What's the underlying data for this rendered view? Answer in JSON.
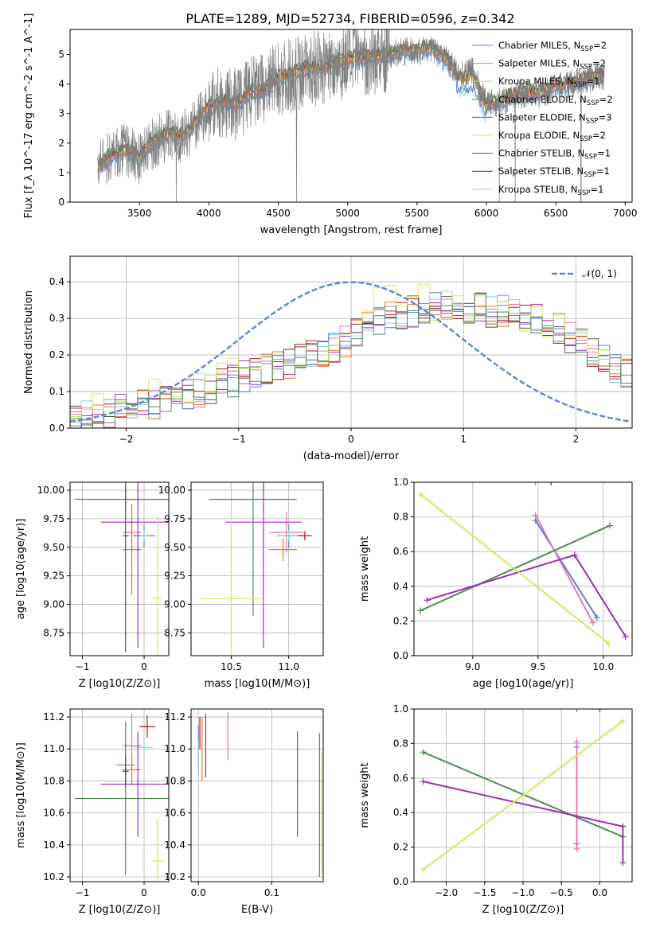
{
  "figure_title": "PLATE=1289, MJD=52734, FIBERID=0596, z=0.342",
  "colors": {
    "chabrier_miles": "#5b7fd0",
    "salpeter_miles": "#e07ab0",
    "kroupa_miles": "#d3d94a",
    "chabrier_elodie": "#4f8a56",
    "salpeter_elodie": "#9b2fb0",
    "kroupa_elodie": "#cfe85a",
    "chabrier_stelib": "#555555",
    "salpeter_stelib": "#b3131b",
    "kroupa_stelib": "#8fd0d8",
    "orange": "#e8742a",
    "data": "#7f7f7f",
    "normal": "#5b86d6"
  },
  "chart_data": [
    {
      "type": "line",
      "panel": "spectrum",
      "title": "PLATE=1289, MJD=52734, FIBERID=0596, z=0.342",
      "xlabel": "wavelength [Angstrom, rest frame]",
      "ylabel": "Flux [f_λ 10^-17 erg cm^-2 s^-1 A^-1]",
      "xlim": [
        3000,
        7050
      ],
      "ylim": [
        0,
        5.85
      ],
      "xticks": [
        "3500",
        "4000",
        "4500",
        "5000",
        "5500",
        "6000",
        "6500",
        "7000"
      ],
      "yticks": [
        "0",
        "1",
        "2",
        "3",
        "4",
        "5"
      ],
      "legend": [
        {
          "label": "Chabrier MILES, N_SSP=2",
          "color": "chabrier_miles"
        },
        {
          "label": "Salpeter MILES, N_SSP=2",
          "color": "salpeter_miles"
        },
        {
          "label": "Kroupa MILES, N_SSP=1",
          "color": "kroupa_miles"
        },
        {
          "label": "Chabrier ELODIE, N_SSP=2",
          "color": "chabrier_elodie"
        },
        {
          "label": "Salpeter ELODIE, N_SSP=3",
          "color": "salpeter_elodie"
        },
        {
          "label": "Kroupa ELODIE, N_SSP=2",
          "color": "kroupa_elodie"
        },
        {
          "label": "Chabrier STELIB, N_SSP=1",
          "color": "chabrier_stelib"
        },
        {
          "label": "Salpeter STELIB, N_SSP=1",
          "color": "salpeter_stelib"
        },
        {
          "label": "Kroupa STELIB, N_SSP=1",
          "color": "kroupa_stelib"
        }
      ],
      "legend_position": "top-right",
      "data_envelope": {
        "x": [
          3200,
          3300,
          3400,
          3500,
          3600,
          3700,
          3800,
          3900,
          4000,
          4100,
          4200,
          4300,
          4400,
          4500,
          4600,
          4700,
          4800,
          4900,
          5000,
          5100,
          5200,
          5300,
          5400,
          5500,
          5600,
          5700,
          5800,
          5900,
          6000,
          6100,
          6200,
          6300,
          6400,
          6500,
          6600,
          6700,
          6850
        ],
        "y": [
          1.15,
          1.6,
          1.75,
          1.5,
          2.0,
          2.3,
          2.2,
          2.6,
          3.2,
          3.4,
          3.3,
          3.7,
          3.8,
          4.2,
          4.3,
          4.5,
          4.5,
          4.7,
          4.8,
          4.9,
          4.9,
          5.0,
          5.1,
          5.1,
          5.2,
          4.9,
          4.3,
          4.4,
          3.3,
          3.4,
          3.6,
          3.7,
          3.7,
          3.9,
          4.0,
          4.1,
          4.3
        ]
      }
    },
    {
      "type": "line",
      "panel": "residuals",
      "xlabel": "(data-model)/error",
      "ylabel": "Normed distribution",
      "xlim": [
        -2.5,
        2.5
      ],
      "ylim": [
        0,
        0.47
      ],
      "xticks": [
        "−2",
        "−1",
        "0",
        "1",
        "2"
      ],
      "yticks": [
        "0.0",
        "0.1",
        "0.2",
        "0.3",
        "0.4"
      ],
      "legend": [
        {
          "label": "𝒩(0, 1)",
          "color": "normal",
          "style": "dashed"
        }
      ],
      "legend_position": "top-right",
      "hist_bins": {
        "start": -2.5,
        "width": 0.1
      },
      "hist_envelope": [
        0.02,
        0.03,
        0.03,
        0.04,
        0.05,
        0.06,
        0.06,
        0.07,
        0.08,
        0.09,
        0.09,
        0.1,
        0.11,
        0.12,
        0.13,
        0.14,
        0.15,
        0.16,
        0.17,
        0.18,
        0.19,
        0.2,
        0.21,
        0.22,
        0.24,
        0.26,
        0.28,
        0.29,
        0.3,
        0.31,
        0.32,
        0.32,
        0.33,
        0.33,
        0.33,
        0.33,
        0.33,
        0.32,
        0.32,
        0.32,
        0.31,
        0.3,
        0.29,
        0.27,
        0.25,
        0.23,
        0.21,
        0.19,
        0.17,
        0.15
      ]
    },
    {
      "type": "scatter",
      "panel": "age_vs_Z",
      "xlabel": "Z [log10(Z/Z⊙)]",
      "ylabel": "age [log10(age/yr)]",
      "xlim": [
        -1.2,
        0.4
      ],
      "ylim": [
        8.55,
        10.07
      ],
      "xticks": [
        "−1",
        "0"
      ],
      "yticks": [
        "8.75",
        "9.00",
        "9.25",
        "9.50",
        "9.75",
        "10.00"
      ],
      "points": [
        {
          "x": 0.0,
          "y": 9.6,
          "xerr": 0.18,
          "yerr": 0.1,
          "color": "chabrier_miles"
        },
        {
          "x": -0.2,
          "y": 9.63,
          "xerr": 0.15,
          "yerr": 0.18,
          "color": "salpeter_miles"
        },
        {
          "x": -0.2,
          "y": 9.48,
          "xerr": 0.15,
          "yerr": 0.4,
          "color": "orange"
        },
        {
          "x": -0.3,
          "y": 9.92,
          "xerr": 0.82,
          "yerr": 0.1,
          "color": "chabrier_elodie"
        },
        {
          "x": -0.1,
          "y": 9.72,
          "xerr": 0.6,
          "yerr": 1.1,
          "color": "salpeter_elodie"
        },
        {
          "x": 0.22,
          "y": 9.05,
          "xerr": 0.08,
          "yerr": 0.72,
          "color": "kroupa_elodie"
        },
        {
          "x": -0.3,
          "y": 9.6,
          "xerr": 0.05,
          "yerr": 1.02,
          "color": "chabrier_stelib"
        },
        {
          "x": 0.0,
          "y": 9.6,
          "xerr": 0.05,
          "yerr": 0.05,
          "color": "kroupa_stelib"
        }
      ]
    },
    {
      "type": "scatter",
      "panel": "age_vs_mass",
      "xlabel": "mass [log10(M/M⊙)]",
      "ylabel": "",
      "xlim": [
        10.15,
        11.3
      ],
      "ylim": [
        8.55,
        10.07
      ],
      "xticks": [
        "10.5",
        "11.0"
      ],
      "yticks": [
        "8.75",
        "9.00",
        "9.25",
        "9.50",
        "9.75",
        "10.00"
      ],
      "points": [
        {
          "x": 11.0,
          "y": 9.6,
          "xerr": 0.1,
          "yerr": 0.1,
          "color": "chabrier_miles"
        },
        {
          "x": 10.98,
          "y": 9.63,
          "xerr": 0.15,
          "yerr": 0.18,
          "color": "salpeter_miles"
        },
        {
          "x": 10.95,
          "y": 9.48,
          "xerr": 0.12,
          "yerr": 0.1,
          "color": "orange"
        },
        {
          "x": 10.69,
          "y": 9.92,
          "xerr": 0.38,
          "yerr": 1.02,
          "color": "chabrier_elodie"
        },
        {
          "x": 10.78,
          "y": 9.72,
          "xerr": 0.33,
          "yerr": 1.1,
          "color": "salpeter_elodie"
        },
        {
          "x": 10.5,
          "y": 9.05,
          "xerr": 0.27,
          "yerr": 0.72,
          "color": "kroupa_elodie"
        },
        {
          "x": 11.14,
          "y": 9.6,
          "xerr": 0.06,
          "yerr": 0.04,
          "color": "salpeter_stelib"
        },
        {
          "x": 11.0,
          "y": 9.6,
          "xerr": 0.08,
          "yerr": 0.05,
          "color": "kroupa_stelib"
        }
      ]
    },
    {
      "type": "line",
      "panel": "weight_vs_age",
      "xlabel": "age [log10(age/yr)]",
      "ylabel": "mass weight",
      "xlim": [
        8.55,
        10.22
      ],
      "ylim": [
        0,
        1
      ],
      "xticks": [
        "9.0",
        "9.5",
        "10.0"
      ],
      "yticks": [
        "0.0",
        "0.2",
        "0.4",
        "0.6",
        "0.8",
        "1.0"
      ],
      "series": [
        {
          "x": [
            9.48,
            9.95
          ],
          "y": [
            0.78,
            0.22
          ],
          "color": "chabrier_miles"
        },
        {
          "x": [
            9.48,
            9.92
          ],
          "y": [
            0.81,
            0.19
          ],
          "color": "salpeter_miles"
        },
        {
          "x": [
            8.6,
            10.05
          ],
          "y": [
            0.26,
            0.75
          ],
          "color": "chabrier_elodie"
        },
        {
          "x": [
            8.65,
            9.78,
            10.17
          ],
          "y": [
            0.32,
            0.58,
            0.11
          ],
          "color": "salpeter_elodie"
        },
        {
          "x": [
            8.6,
            10.04
          ],
          "y": [
            0.93,
            0.07
          ],
          "color": "kroupa_elodie"
        },
        {
          "x": [
            9.48
          ],
          "y": [
            1.0
          ],
          "color": "orange"
        },
        {
          "x": [
            9.6
          ],
          "y": [
            1.0
          ],
          "color": "chabrier_stelib"
        }
      ]
    },
    {
      "type": "scatter",
      "panel": "mass_vs_Z",
      "xlabel": "Z [log10(Z/Z⊙)]",
      "ylabel": "mass [log10(M/M⊙)]",
      "xlim": [
        -1.2,
        0.4
      ],
      "ylim": [
        10.17,
        11.25
      ],
      "xticks": [
        "−1",
        "0"
      ],
      "yticks": [
        "10.2",
        "10.4",
        "10.6",
        "10.8",
        "11.0",
        "11.2"
      ],
      "points": [
        {
          "x": -0.3,
          "y": 10.9,
          "xerr": 0.15,
          "yerr": 0.13,
          "color": "chabrier_miles"
        },
        {
          "x": -0.2,
          "y": 11.02,
          "xerr": 0.15,
          "yerr": 0.2,
          "color": "salpeter_miles"
        },
        {
          "x": -0.2,
          "y": 10.87,
          "xerr": 0.15,
          "yerr": 0.1,
          "color": "orange"
        },
        {
          "x": -0.3,
          "y": 10.69,
          "xerr": 0.82,
          "yerr": 0.48,
          "color": "chabrier_elodie"
        },
        {
          "x": -0.1,
          "y": 10.78,
          "xerr": 0.6,
          "yerr": 0.33,
          "color": "salpeter_elodie"
        },
        {
          "x": 0.22,
          "y": 10.3,
          "xerr": 0.1,
          "yerr": 0.27,
          "color": "kroupa_elodie"
        },
        {
          "x": 0.05,
          "y": 11.14,
          "xerr": 0.13,
          "yerr": 0.07,
          "color": "salpeter_stelib"
        },
        {
          "x": 0.0,
          "y": 11.01,
          "xerr": 0.15,
          "yerr": 0.05,
          "color": "kroupa_stelib"
        },
        {
          "x": -0.3,
          "y": 10.86,
          "xerr": 0.05,
          "yerr": 0.1,
          "color": "chabrier_stelib"
        }
      ]
    },
    {
      "type": "scatter",
      "panel": "mass_vs_EBV",
      "xlabel": "E(B-V)",
      "ylabel": "",
      "xlim": [
        -0.01,
        0.17
      ],
      "ylim": [
        10.17,
        11.25
      ],
      "xticks": [
        "0.0",
        "0.1"
      ],
      "yticks": [
        "10.2",
        "10.4",
        "10.6",
        "10.8",
        "11.0",
        "11.2"
      ],
      "points": [
        {
          "x": 0.0,
          "y": 11.0,
          "yerr": 0.15,
          "color": "chabrier_miles"
        },
        {
          "x": 0.04,
          "y": 11.08,
          "yerr": 0.15,
          "color": "salpeter_miles"
        },
        {
          "x": 0.005,
          "y": 11.0,
          "yerr": 0.2,
          "color": "orange"
        },
        {
          "x": 0.01,
          "y": 11.02,
          "yerr": 0.2,
          "color": "chabrier_stelib"
        },
        {
          "x": 0.002,
          "y": 11.1,
          "yerr": 0.1,
          "color": "salpeter_stelib"
        },
        {
          "x": 0.135,
          "y": 10.78,
          "yerr": 0.33,
          "color": "salpeter_elodie"
        },
        {
          "x": 0.165,
          "y": 10.65,
          "yerr": 0.45,
          "color": "chabrier_elodie"
        },
        {
          "x": 0.168,
          "y": 10.6,
          "yerr": 0.38,
          "color": "kroupa_elodie"
        },
        {
          "x": 0.0,
          "y": 10.95,
          "yerr": 0.1,
          "color": "kroupa_stelib"
        }
      ]
    },
    {
      "type": "line",
      "panel": "weight_vs_Z",
      "xlabel": "Z [log10(Z/Z⊙)]",
      "ylabel": "mass weight",
      "xlim": [
        -2.42,
        0.42
      ],
      "ylim": [
        0,
        1
      ],
      "xticks": [
        "−2.0",
        "−1.5",
        "−1.0",
        "−0.5",
        "0.0"
      ],
      "yticks": [
        "0.0",
        "0.2",
        "0.4",
        "0.6",
        "0.8",
        "1.0"
      ],
      "series": [
        {
          "x": [
            -0.3,
            -0.3
          ],
          "y": [
            0.78,
            0.22
          ],
          "color": "chabrier_miles"
        },
        {
          "x": [
            -0.3,
            -0.3
          ],
          "y": [
            0.81,
            0.19
          ],
          "color": "salpeter_miles"
        },
        {
          "x": [
            -2.3,
            0.3
          ],
          "y": [
            0.75,
            0.26
          ],
          "color": "chabrier_elodie"
        },
        {
          "x": [
            -2.3,
            0.3,
            0.3
          ],
          "y": [
            0.58,
            0.32,
            0.11
          ],
          "color": "salpeter_elodie"
        },
        {
          "x": [
            -2.3,
            0.3
          ],
          "y": [
            0.07,
            0.93
          ],
          "color": "kroupa_elodie"
        },
        {
          "x": [
            -0.3
          ],
          "y": [
            1.0
          ],
          "color": "orange"
        },
        {
          "x": [
            0.0
          ],
          "y": [
            1.0
          ],
          "color": "chabrier_stelib"
        }
      ]
    }
  ]
}
